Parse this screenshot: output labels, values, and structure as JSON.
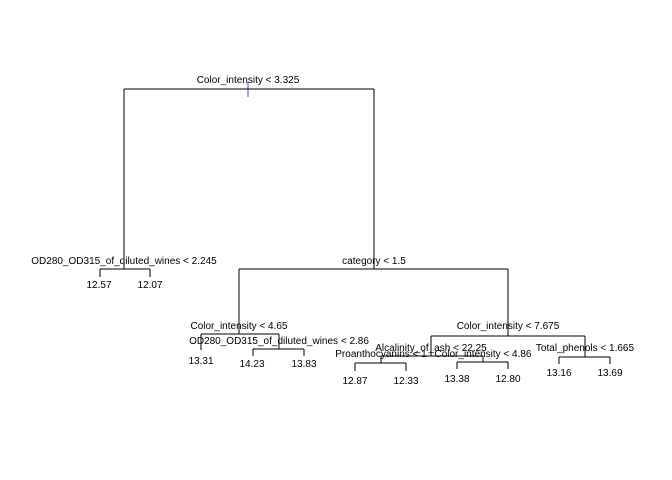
{
  "splits": [
    "Color_intensity < 3.325",
    "OD280_OD315_of_diluted_wines < 2.245",
    "category < 1.5",
    "Color_intensity < 4.65",
    "OD280_OD315_of_diluted_wines < 2.86",
    "Color_intensity < 7.675",
    "Alcalinity_of_ash < 22.25",
    "Proanthocyanins < 1",
    "Color_intensity < 4.86",
    "Total_phenols < 1.665"
  ],
  "leaves": [
    "12.57",
    "12.07",
    "13.31",
    "14.23",
    "13.83",
    "12.87",
    "12.33",
    "13.38",
    "12.80",
    "13.16",
    "13.69"
  ]
}
